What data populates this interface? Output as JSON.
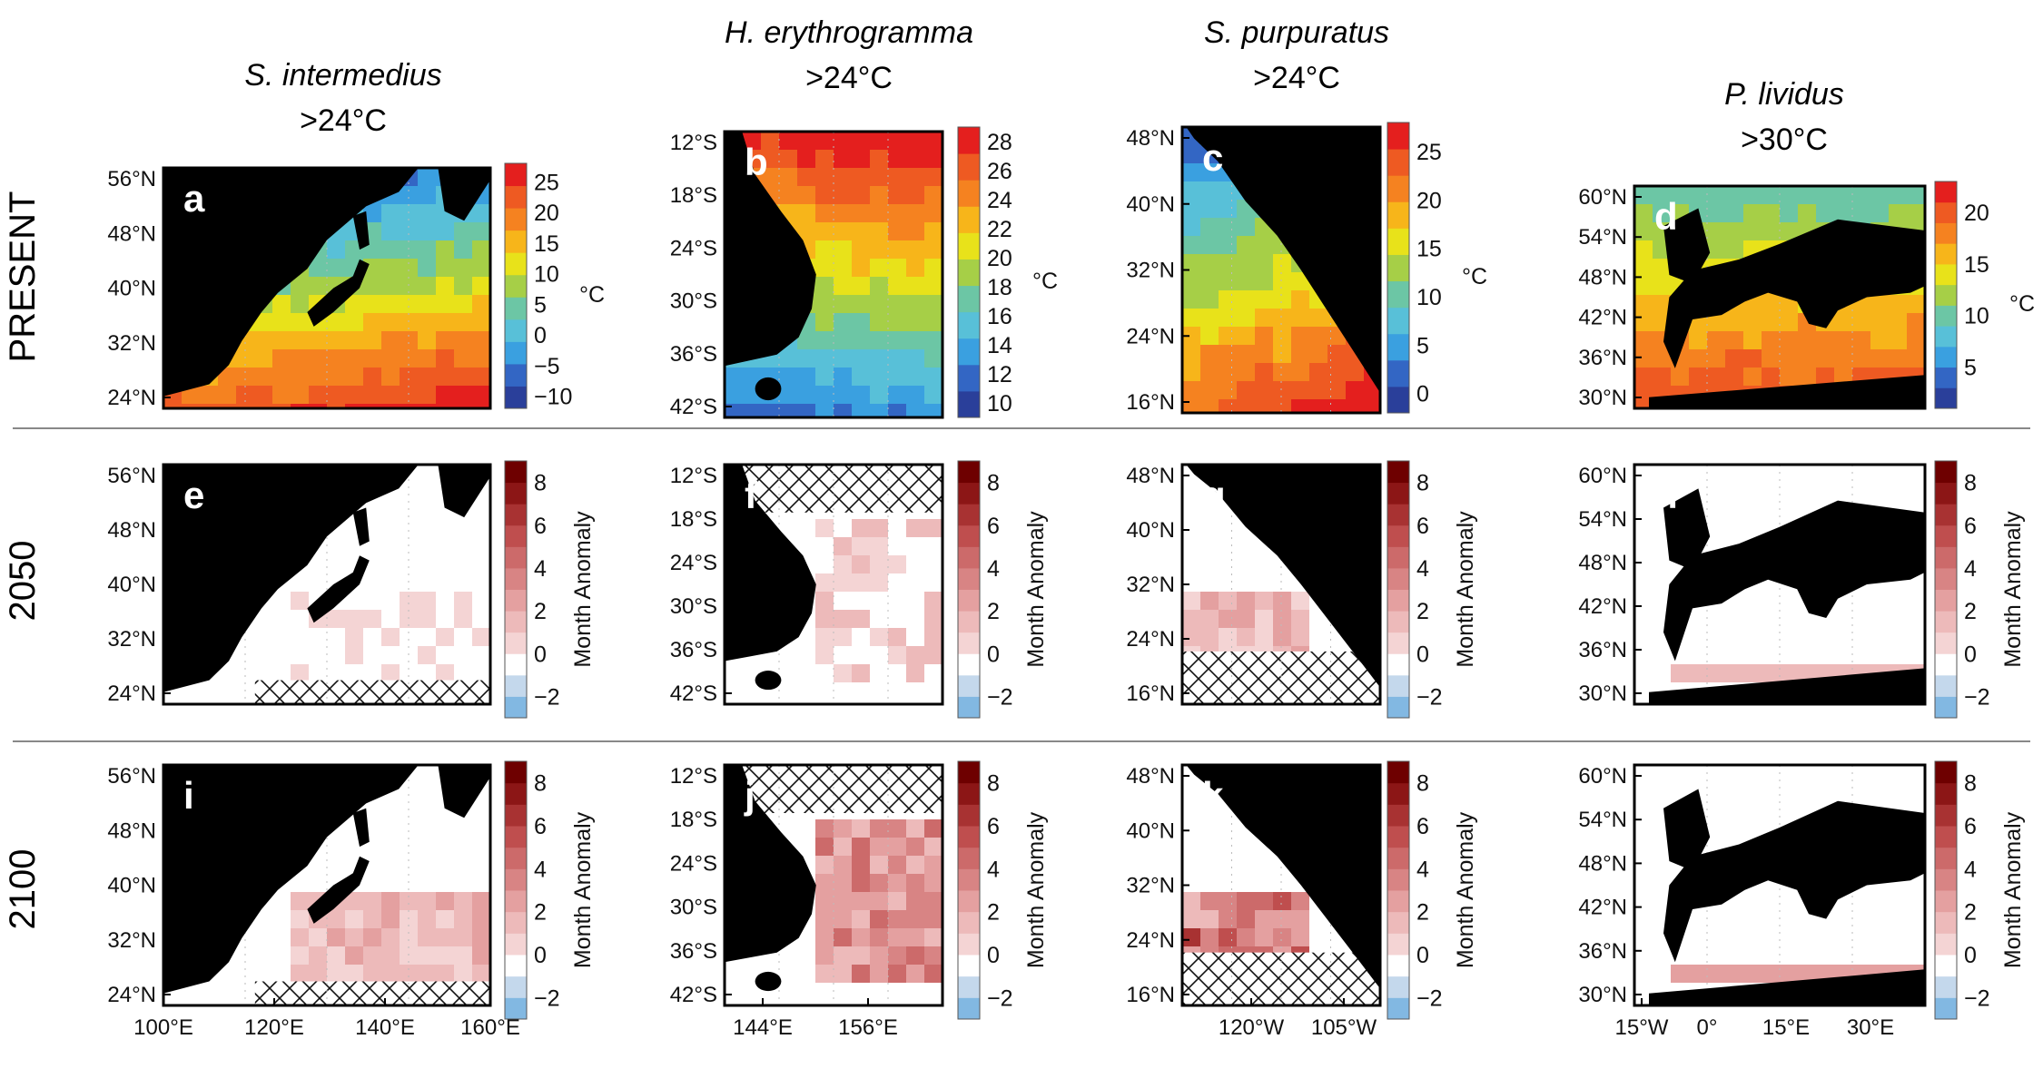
{
  "rows": [
    "PRESENT",
    "2050",
    "2100"
  ],
  "species": [
    {
      "name": "S. intermedius",
      "threshold": ">24°C"
    },
    {
      "name": "H. erythrogramma",
      "threshold": ">24°C"
    },
    {
      "name": "S. purpuratus",
      "threshold": ">24°C"
    },
    {
      "name": "P. lividus",
      "threshold": ">30°C"
    }
  ],
  "colors": {
    "temperature_scale": [
      "#2a3f9a",
      "#3366c4",
      "#3aa0e0",
      "#58c0d8",
      "#6cc6a5",
      "#a6cf47",
      "#e8e21a",
      "#f7b51a",
      "#f58220",
      "#ee5a22",
      "#e41f1e"
    ],
    "anomaly_scale": [
      "#82b8e2",
      "#c4d8ec",
      "#ffffff",
      "#f4d4d4",
      "#edbaba",
      "#e4a0a0",
      "#d88484",
      "#cc6a6a",
      "#bf4e4e",
      "#a83232",
      "#8c1616",
      "#6e0000"
    ],
    "land": "#000000",
    "no_data": "#ffffff"
  },
  "chart_data": [
    {
      "panel": "a",
      "type": "heatmap",
      "row": "PRESENT",
      "species": "S. intermedius",
      "yticks": [
        "56°N",
        "48°N",
        "40°N",
        "32°N",
        "24°N"
      ],
      "xticks": [],
      "colorbar_ticks": [
        "25",
        "20",
        "15",
        "10",
        "5",
        "0",
        "−5",
        "−10"
      ],
      "colorbar_label": "°C",
      "crange": [
        -12,
        28
      ]
    },
    {
      "panel": "b",
      "type": "heatmap",
      "row": "PRESENT",
      "species": "H. erythrogramma",
      "yticks": [
        "12°S",
        "18°S",
        "24°S",
        "30°S",
        "36°S",
        "42°S"
      ],
      "xticks": [],
      "colorbar_ticks": [
        "28",
        "26",
        "24",
        "22",
        "20",
        "18",
        "16",
        "14",
        "12",
        "10"
      ],
      "colorbar_label": "°C",
      "crange": [
        9,
        29
      ]
    },
    {
      "panel": "c",
      "type": "heatmap",
      "row": "PRESENT",
      "species": "S. purpuratus",
      "yticks": [
        "48°N",
        "40°N",
        "32°N",
        "24°N",
        "16°N"
      ],
      "xticks": [],
      "colorbar_ticks": [
        "25",
        "20",
        "15",
        "10",
        "5",
        "0"
      ],
      "colorbar_label": "°C",
      "crange": [
        -2,
        28
      ]
    },
    {
      "panel": "d",
      "type": "heatmap",
      "row": "PRESENT",
      "species": "P. lividus",
      "yticks": [
        "60°N",
        "54°N",
        "48°N",
        "42°N",
        "36°N",
        "30°N"
      ],
      "xticks": [],
      "colorbar_ticks": [
        "20",
        "15",
        "10",
        "5"
      ],
      "colorbar_label": "°C",
      "crange": [
        1,
        23
      ]
    },
    {
      "panel": "e",
      "type": "heatmap",
      "row": "2050",
      "species": "S. intermedius",
      "yticks": [
        "56°N",
        "48°N",
        "40°N",
        "32°N",
        "24°N"
      ],
      "xticks": [],
      "colorbar_ticks": [
        "8",
        "6",
        "4",
        "2",
        "0",
        "−2"
      ],
      "colorbar_label": "Month Anomaly",
      "crange": [
        -3,
        9
      ]
    },
    {
      "panel": "f",
      "type": "heatmap",
      "row": "2050",
      "species": "H. erythrogramma",
      "yticks": [
        "12°S",
        "18°S",
        "24°S",
        "30°S",
        "36°S",
        "42°S"
      ],
      "xticks": [],
      "colorbar_ticks": [
        "8",
        "6",
        "4",
        "2",
        "0",
        "−2"
      ],
      "colorbar_label": "Month Anomaly",
      "crange": [
        -3,
        9
      ]
    },
    {
      "panel": "g",
      "type": "heatmap",
      "row": "2050",
      "species": "S. purpuratus",
      "yticks": [
        "48°N",
        "40°N",
        "32°N",
        "24°N",
        "16°N"
      ],
      "xticks": [],
      "colorbar_ticks": [
        "8",
        "6",
        "4",
        "2",
        "0",
        "−2"
      ],
      "colorbar_label": "Month Anomaly",
      "crange": [
        -3,
        9
      ]
    },
    {
      "panel": "h",
      "type": "heatmap",
      "row": "2050",
      "species": "P. lividus",
      "yticks": [
        "60°N",
        "54°N",
        "48°N",
        "42°N",
        "36°N",
        "30°N"
      ],
      "xticks": [],
      "colorbar_ticks": [
        "8",
        "6",
        "4",
        "2",
        "0",
        "−2"
      ],
      "colorbar_label": "Month Anomaly",
      "crange": [
        -3,
        9
      ]
    },
    {
      "panel": "i",
      "type": "heatmap",
      "row": "2100",
      "species": "S. intermedius",
      "yticks": [
        "56°N",
        "48°N",
        "40°N",
        "32°N",
        "24°N"
      ],
      "xticks": [
        "100°E",
        "120°E",
        "140°E",
        "160°E"
      ],
      "colorbar_ticks": [
        "8",
        "6",
        "4",
        "2",
        "0",
        "−2"
      ],
      "colorbar_label": "Month Anomaly",
      "crange": [
        -3,
        9
      ]
    },
    {
      "panel": "j",
      "type": "heatmap",
      "row": "2100",
      "species": "H. erythrogramma",
      "yticks": [
        "12°S",
        "18°S",
        "24°S",
        "30°S",
        "36°S",
        "42°S"
      ],
      "xticks": [
        "144°E",
        "156°E"
      ],
      "colorbar_ticks": [
        "8",
        "6",
        "4",
        "2",
        "0",
        "−2"
      ],
      "colorbar_label": "Month Anomaly",
      "crange": [
        -3,
        9
      ]
    },
    {
      "panel": "k",
      "type": "heatmap",
      "row": "2100",
      "species": "S. purpuratus",
      "yticks": [
        "48°N",
        "40°N",
        "32°N",
        "24°N",
        "16°N"
      ],
      "xticks": [
        "120°W",
        "105°W"
      ],
      "colorbar_ticks": [
        "8",
        "6",
        "4",
        "2",
        "0",
        "−2"
      ],
      "colorbar_label": "Month Anomaly",
      "crange": [
        -3,
        9
      ]
    },
    {
      "panel": "l",
      "type": "heatmap",
      "row": "2100",
      "species": "P. lividus",
      "yticks": [
        "60°N",
        "54°N",
        "48°N",
        "42°N",
        "36°N",
        "30°N"
      ],
      "xticks": [
        "15°W",
        "0°",
        "15°E",
        "30°E"
      ],
      "colorbar_ticks": [
        "8",
        "6",
        "4",
        "2",
        "0",
        "−2"
      ],
      "colorbar_label": "Month Anomaly",
      "crange": [
        -3,
        9
      ]
    }
  ]
}
